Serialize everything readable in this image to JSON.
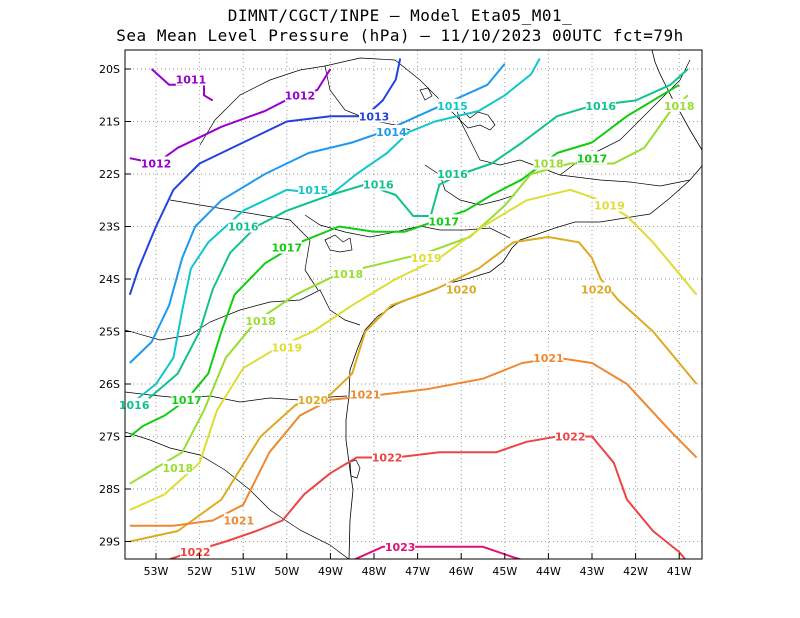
{
  "header": {
    "line1": "DIMNT/CGCT/INPE –  Model Eta05_M01_",
    "line2": "Sea Mean Level Pressure (hPa) – 11/10/2023 00UTC fct=79h"
  },
  "axes": {
    "lon_ticks": [
      "53W",
      "52W",
      "51W",
      "50W",
      "49W",
      "48W",
      "47W",
      "46W",
      "45W",
      "44W",
      "43W",
      "42W",
      "41W"
    ],
    "lat_ticks": [
      "20S",
      "21S",
      "22S",
      "23S",
      "24S",
      "25S",
      "26S",
      "27S",
      "28S",
      "29S"
    ]
  },
  "contours": [
    {
      "level": "1011",
      "color": "#9900cc",
      "labels": [
        {
          "text": "1011",
          "lon": -52.2,
          "lat": -20.2
        }
      ],
      "pts": [
        [
          -53.1,
          -20.0
        ],
        [
          -52.7,
          -20.3
        ],
        [
          -52.4,
          -20.3
        ],
        [
          -52.2,
          -20.2
        ],
        [
          -51.9,
          -20.2
        ],
        [
          -51.9,
          -20.5
        ],
        [
          -51.7,
          -20.6
        ]
      ]
    },
    {
      "level": "1012",
      "color": "#9900cc",
      "labels": [
        {
          "text": "1012",
          "lon": -53.0,
          "lat": -21.8
        },
        {
          "text": "1012",
          "lon": -49.7,
          "lat": -20.5
        }
      ],
      "pts": [
        [
          -53.6,
          -21.7
        ],
        [
          -53.0,
          -21.8
        ],
        [
          -52.5,
          -21.5
        ],
        [
          -51.5,
          -21.1
        ],
        [
          -50.5,
          -20.8
        ],
        [
          -49.8,
          -20.5
        ],
        [
          -49.3,
          -20.4
        ],
        [
          -49.0,
          -20.0
        ]
      ]
    },
    {
      "level": "1013",
      "color": "#2244dd",
      "labels": [
        {
          "text": "1013",
          "lon": -48.0,
          "lat": -20.9
        }
      ],
      "pts": [
        [
          -53.6,
          -24.3
        ],
        [
          -53.4,
          -23.8
        ],
        [
          -53.0,
          -23.0
        ],
        [
          -52.6,
          -22.3
        ],
        [
          -52.0,
          -21.8
        ],
        [
          -51.0,
          -21.4
        ],
        [
          -50.0,
          -21.0
        ],
        [
          -49.0,
          -20.9
        ],
        [
          -48.2,
          -20.9
        ],
        [
          -47.8,
          -20.6
        ],
        [
          -47.5,
          -20.2
        ],
        [
          -47.4,
          -19.8
        ]
      ]
    },
    {
      "level": "1014",
      "color": "#1f99ee",
      "labels": [
        {
          "text": "1014",
          "lon": -47.6,
          "lat": -21.2
        }
      ],
      "pts": [
        [
          -53.6,
          -25.6
        ],
        [
          -53.1,
          -25.2
        ],
        [
          -52.7,
          -24.5
        ],
        [
          -52.4,
          -23.6
        ],
        [
          -52.1,
          -23.0
        ],
        [
          -51.5,
          -22.5
        ],
        [
          -50.5,
          -22.0
        ],
        [
          -49.5,
          -21.6
        ],
        [
          -48.5,
          -21.4
        ],
        [
          -47.8,
          -21.2
        ],
        [
          -47.0,
          -20.9
        ],
        [
          -45.4,
          -20.3
        ],
        [
          -45.0,
          -19.9
        ]
      ]
    },
    {
      "level": "1015",
      "color": "#11c6cc",
      "labels": [
        {
          "text": "1015",
          "lon": -49.4,
          "lat": -22.3
        },
        {
          "text": "1015",
          "lon": -46.2,
          "lat": -20.7
        }
      ],
      "pts": [
        [
          -53.6,
          -26.4
        ],
        [
          -53.0,
          -26.0
        ],
        [
          -52.6,
          -25.5
        ],
        [
          -52.4,
          -24.6
        ],
        [
          -52.2,
          -23.8
        ],
        [
          -51.8,
          -23.3
        ],
        [
          -51.0,
          -22.7
        ],
        [
          -50.0,
          -22.3
        ],
        [
          -49.0,
          -22.4
        ],
        [
          -48.4,
          -22.0
        ],
        [
          -47.7,
          -21.6
        ],
        [
          -47.2,
          -21.2
        ],
        [
          -46.6,
          -21.0
        ],
        [
          -45.6,
          -20.8
        ],
        [
          -45.0,
          -20.5
        ],
        [
          -44.4,
          -20.1
        ],
        [
          -44.2,
          -19.8
        ]
      ]
    },
    {
      "level": "1016",
      "color": "#11c28e",
      "labels": [
        {
          "text": "1016",
          "lon": -53.5,
          "lat": -26.4
        },
        {
          "text": "1016",
          "lon": -51.0,
          "lat": -23.0
        },
        {
          "text": "1016",
          "lon": -47.9,
          "lat": -22.2
        },
        {
          "text": "1016",
          "lon": -46.2,
          "lat": -22.0
        },
        {
          "text": "1016",
          "lon": -42.8,
          "lat": -20.7
        }
      ],
      "pts": [
        [
          -53.6,
          -26.5
        ],
        [
          -53.2,
          -26.3
        ],
        [
          -52.5,
          -25.8
        ],
        [
          -52.0,
          -25.0
        ],
        [
          -51.7,
          -24.2
        ],
        [
          -51.3,
          -23.5
        ],
        [
          -50.7,
          -23.0
        ],
        [
          -50.0,
          -22.7
        ],
        [
          -49.0,
          -22.4
        ],
        [
          -48.2,
          -22.2
        ],
        [
          -47.5,
          -22.4
        ],
        [
          -47.1,
          -22.8
        ],
        [
          -46.7,
          -22.8
        ],
        [
          -46.5,
          -22.2
        ],
        [
          -46.0,
          -22.0
        ],
        [
          -45.3,
          -21.8
        ],
        [
          -44.6,
          -21.4
        ],
        [
          -43.8,
          -20.9
        ],
        [
          -43.0,
          -20.7
        ],
        [
          -42.0,
          -20.6
        ],
        [
          -41.2,
          -20.3
        ],
        [
          -40.8,
          -20.0
        ]
      ]
    },
    {
      "level": "1017",
      "color": "#11cc11",
      "labels": [
        {
          "text": "1017",
          "lon": -52.3,
          "lat": -26.3
        },
        {
          "text": "1017",
          "lon": -50.0,
          "lat": -23.4
        },
        {
          "text": "1017",
          "lon": -46.4,
          "lat": -22.9
        },
        {
          "text": "1017",
          "lon": -43.0,
          "lat": -21.7
        }
      ],
      "pts": [
        [
          -53.6,
          -27.0
        ],
        [
          -53.3,
          -26.8
        ],
        [
          -52.8,
          -26.6
        ],
        [
          -52.3,
          -26.3
        ],
        [
          -51.8,
          -25.8
        ],
        [
          -51.5,
          -25.0
        ],
        [
          -51.2,
          -24.3
        ],
        [
          -50.5,
          -23.7
        ],
        [
          -49.7,
          -23.3
        ],
        [
          -48.8,
          -23.0
        ],
        [
          -48.0,
          -23.1
        ],
        [
          -47.3,
          -23.1
        ],
        [
          -46.6,
          -22.9
        ],
        [
          -45.9,
          -22.7
        ],
        [
          -45.3,
          -22.4
        ],
        [
          -44.6,
          -22.1
        ],
        [
          -43.8,
          -21.6
        ],
        [
          -43.0,
          -21.4
        ],
        [
          -42.2,
          -20.9
        ],
        [
          -41.6,
          -20.6
        ],
        [
          -41.0,
          -20.3
        ]
      ]
    },
    {
      "level": "1018",
      "color": "#99dd33",
      "labels": [
        {
          "text": "1018",
          "lon": -52.5,
          "lat": -27.6
        },
        {
          "text": "1018",
          "lon": -50.6,
          "lat": -24.8
        },
        {
          "text": "1018",
          "lon": -48.6,
          "lat": -23.9
        },
        {
          "text": "1018",
          "lon": -44.0,
          "lat": -21.8
        },
        {
          "text": "1018",
          "lon": -41.0,
          "lat": -20.7
        }
      ],
      "pts": [
        [
          -53.6,
          -27.9
        ],
        [
          -53.0,
          -27.6
        ],
        [
          -52.4,
          -27.3
        ],
        [
          -51.9,
          -26.5
        ],
        [
          -51.4,
          -25.5
        ],
        [
          -50.7,
          -24.8
        ],
        [
          -49.8,
          -24.3
        ],
        [
          -48.8,
          -23.9
        ],
        [
          -47.8,
          -23.7
        ],
        [
          -46.8,
          -23.5
        ],
        [
          -45.8,
          -23.2
        ],
        [
          -45.0,
          -22.6
        ],
        [
          -44.4,
          -22.0
        ],
        [
          -43.5,
          -21.8
        ],
        [
          -42.5,
          -21.8
        ],
        [
          -41.8,
          -21.5
        ],
        [
          -41.2,
          -20.8
        ],
        [
          -40.8,
          -20.5
        ]
      ]
    },
    {
      "level": "1019",
      "color": "#dddd33",
      "labels": [
        {
          "text": "1019",
          "lon": -50.0,
          "lat": -25.3
        },
        {
          "text": "1019",
          "lon": -46.8,
          "lat": -23.6
        },
        {
          "text": "1019",
          "lon": -42.6,
          "lat": -22.6
        }
      ],
      "pts": [
        [
          -53.6,
          -28.4
        ],
        [
          -52.8,
          -28.1
        ],
        [
          -52.0,
          -27.5
        ],
        [
          -51.6,
          -26.5
        ],
        [
          -51.0,
          -25.7
        ],
        [
          -50.2,
          -25.3
        ],
        [
          -49.4,
          -25.0
        ],
        [
          -48.5,
          -24.5
        ],
        [
          -47.5,
          -24.0
        ],
        [
          -46.5,
          -23.6
        ],
        [
          -45.5,
          -23.0
        ],
        [
          -44.5,
          -22.5
        ],
        [
          -43.5,
          -22.3
        ],
        [
          -42.8,
          -22.5
        ],
        [
          -42.2,
          -22.8
        ],
        [
          -41.6,
          -23.3
        ],
        [
          -41.0,
          -23.9
        ],
        [
          -40.6,
          -24.3
        ]
      ]
    },
    {
      "level": "1020",
      "color": "#ddaa22",
      "labels": [
        {
          "text": "1020",
          "lon": -49.4,
          "lat": -26.3
        },
        {
          "text": "1020",
          "lon": -46.0,
          "lat": -24.2
        },
        {
          "text": "1020",
          "lon": -42.9,
          "lat": -24.2
        }
      ],
      "pts": [
        [
          -53.6,
          -29.0
        ],
        [
          -52.5,
          -28.8
        ],
        [
          -51.5,
          -28.2
        ],
        [
          -50.6,
          -27.0
        ],
        [
          -49.8,
          -26.4
        ],
        [
          -49.0,
          -26.2
        ],
        [
          -48.5,
          -25.8
        ],
        [
          -48.2,
          -25.0
        ],
        [
          -47.6,
          -24.5
        ],
        [
          -46.6,
          -24.2
        ],
        [
          -45.6,
          -23.8
        ],
        [
          -44.8,
          -23.3
        ],
        [
          -44.0,
          -23.2
        ],
        [
          -43.3,
          -23.3
        ],
        [
          -43.0,
          -23.6
        ],
        [
          -42.8,
          -24.0
        ],
        [
          -42.4,
          -24.4
        ],
        [
          -41.6,
          -25.0
        ],
        [
          -41.0,
          -25.6
        ],
        [
          -40.6,
          -26.0
        ]
      ]
    },
    {
      "level": "1021",
      "color": "#ee8833",
      "labels": [
        {
          "text": "1021",
          "lon": -51.1,
          "lat": -28.6
        },
        {
          "text": "1021",
          "lon": -48.2,
          "lat": -26.2
        },
        {
          "text": "1021",
          "lon": -44.0,
          "lat": -25.5
        }
      ],
      "pts": [
        [
          -53.6,
          -28.7
        ],
        [
          -52.6,
          -28.7
        ],
        [
          -51.7,
          -28.6
        ],
        [
          -51.0,
          -28.3
        ],
        [
          -50.4,
          -27.3
        ],
        [
          -49.7,
          -26.6
        ],
        [
          -49.0,
          -26.3
        ],
        [
          -47.8,
          -26.2
        ],
        [
          -46.8,
          -26.1
        ],
        [
          -45.5,
          -25.9
        ],
        [
          -44.6,
          -25.6
        ],
        [
          -43.8,
          -25.5
        ],
        [
          -43.0,
          -25.6
        ],
        [
          -42.2,
          -26.0
        ],
        [
          -41.2,
          -26.9
        ],
        [
          -40.6,
          -27.4
        ]
      ]
    },
    {
      "level": "1022",
      "color": "#ee4444",
      "labels": [
        {
          "text": "1022",
          "lon": -52.1,
          "lat": -29.2
        },
        {
          "text": "1022",
          "lon": -47.7,
          "lat": -27.4
        },
        {
          "text": "1022",
          "lon": -43.5,
          "lat": -27.0
        }
      ],
      "pts": [
        [
          -52.9,
          -29.4
        ],
        [
          -52.2,
          -29.2
        ],
        [
          -51.4,
          -29.0
        ],
        [
          -50.7,
          -28.8
        ],
        [
          -50.1,
          -28.6
        ],
        [
          -49.6,
          -28.1
        ],
        [
          -49.0,
          -27.7
        ],
        [
          -48.4,
          -27.4
        ],
        [
          -47.5,
          -27.4
        ],
        [
          -46.5,
          -27.3
        ],
        [
          -45.2,
          -27.3
        ],
        [
          -44.5,
          -27.1
        ],
        [
          -43.8,
          -27.0
        ],
        [
          -43.0,
          -27.0
        ],
        [
          -42.5,
          -27.5
        ],
        [
          -42.2,
          -28.2
        ],
        [
          -41.6,
          -28.8
        ],
        [
          -41.0,
          -29.2
        ],
        [
          -40.8,
          -29.4
        ]
      ]
    },
    {
      "level": "1023",
      "color": "#dd1177",
      "labels": [
        {
          "text": "1023",
          "lon": -47.4,
          "lat": -29.1
        }
      ],
      "pts": [
        [
          -48.6,
          -29.4
        ],
        [
          -47.8,
          -29.1
        ],
        [
          -46.8,
          -29.1
        ],
        [
          -45.5,
          -29.1
        ],
        [
          -44.8,
          -29.3
        ],
        [
          -44.4,
          -29.4
        ]
      ]
    }
  ]
}
